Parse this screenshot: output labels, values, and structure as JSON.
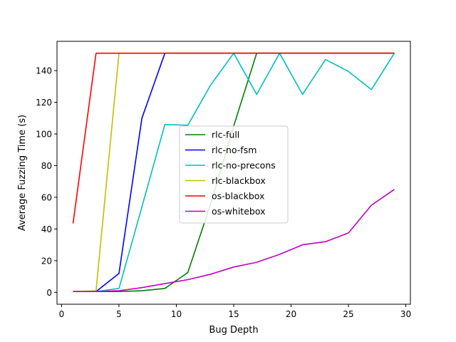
{
  "chart_data": {
    "type": "line",
    "title": "",
    "xlabel": "Bug Depth",
    "ylabel": "Average Fuzzing Time (s)",
    "xlim": [
      -0.4,
      30.4
    ],
    "ylim": [
      -7.5,
      158.5
    ],
    "xticks": [
      0,
      5,
      10,
      15,
      20,
      25,
      30
    ],
    "yticks": [
      0,
      20,
      40,
      60,
      80,
      100,
      120,
      140
    ],
    "grid": false,
    "legend_position": "center",
    "series": [
      {
        "name": "rlc-full",
        "color": "#008000",
        "x": [
          1,
          3,
          5,
          7,
          9,
          11,
          13,
          15,
          17,
          19,
          21,
          23,
          25,
          27,
          29
        ],
        "y": [
          0.5,
          0.5,
          0.5,
          1,
          2.5,
          12.5,
          56,
          105,
          151,
          151,
          151,
          151,
          151,
          151,
          151
        ]
      },
      {
        "name": "rlc-no-fsm",
        "color": "#0000ff",
        "x": [
          1,
          3,
          5,
          7,
          9,
          11,
          13,
          15,
          17,
          19,
          21,
          23,
          25,
          27,
          29
        ],
        "y": [
          0.5,
          0.5,
          12,
          110,
          151,
          151,
          151,
          151,
          151,
          151,
          151,
          151,
          151,
          151,
          151
        ]
      },
      {
        "name": "rlc-no-precons",
        "color": "#00bfbf",
        "x": [
          1,
          3,
          5,
          7,
          9,
          11,
          13,
          15,
          17,
          19,
          21,
          23,
          25,
          27,
          29
        ],
        "y": [
          0.5,
          0.5,
          2.5,
          54,
          106,
          105.5,
          131,
          151,
          125,
          151,
          125,
          147,
          139.5,
          128,
          151
        ]
      },
      {
        "name": "rlc-blackbox",
        "color": "#bfbf00",
        "x": [
          1,
          3,
          5,
          7,
          9,
          11,
          13,
          15,
          17,
          19,
          21,
          23,
          25,
          27,
          29
        ],
        "y": [
          0.5,
          1,
          151,
          151,
          151,
          151,
          151,
          151,
          151,
          151,
          151,
          151,
          151,
          151,
          151
        ]
      },
      {
        "name": "os-blackbox",
        "color": "#ff0000",
        "x": [
          1,
          3,
          5,
          7,
          9,
          11,
          13,
          15,
          17,
          19,
          21,
          23,
          25,
          27,
          29
        ],
        "y": [
          43.5,
          151,
          151,
          151,
          151,
          151,
          151,
          151,
          151,
          151,
          151,
          151,
          151,
          151,
          151
        ]
      },
      {
        "name": "os-whitebox",
        "color": "#bf00bf",
        "x": [
          1,
          3,
          5,
          7,
          9,
          11,
          13,
          15,
          17,
          19,
          21,
          23,
          25,
          27,
          29
        ],
        "y": [
          0.5,
          0.5,
          1,
          3,
          5.5,
          8,
          11.5,
          16,
          19,
          24,
          30,
          32,
          37.5,
          55,
          65
        ]
      }
    ]
  }
}
